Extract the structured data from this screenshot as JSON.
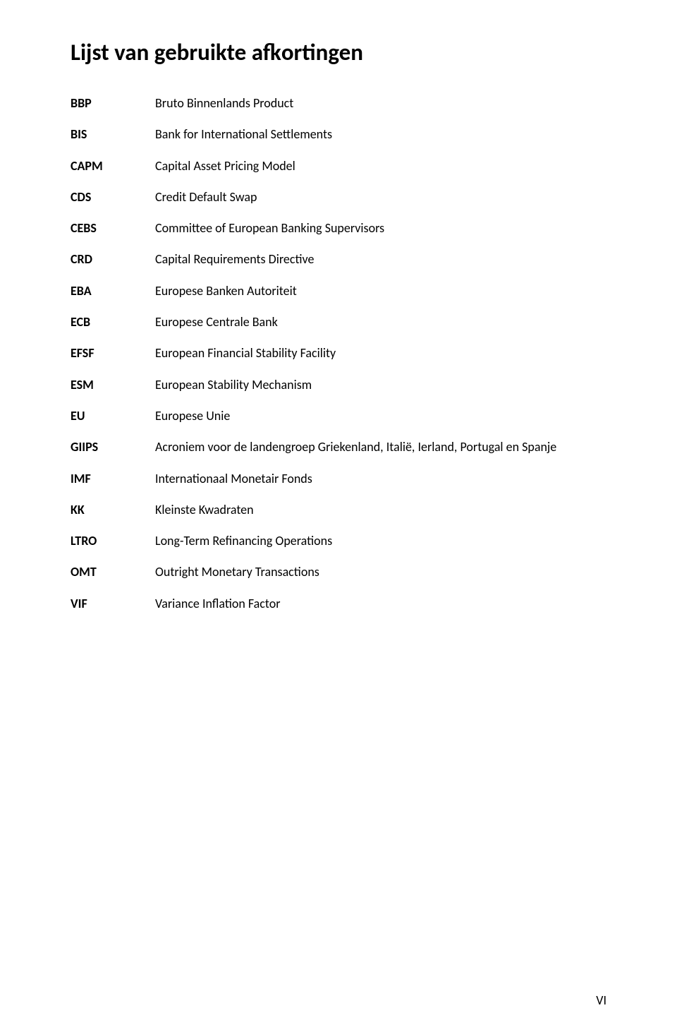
{
  "title": "Lijst van gebruikte afkortingen",
  "rows": [
    {
      "term": "BBP",
      "def": "Bruto Binnenlands Product"
    },
    {
      "term": "BIS",
      "def": "Bank for International Settlements"
    },
    {
      "term": "CAPM",
      "def": "Capital Asset Pricing Model"
    },
    {
      "term": "CDS",
      "def": "Credit Default Swap"
    },
    {
      "term": "CEBS",
      "def": "Committee of European Banking Supervisors"
    },
    {
      "term": "CRD",
      "def": "Capital Requirements Directive"
    },
    {
      "term": "EBA",
      "def": "Europese Banken Autoriteit"
    },
    {
      "term": "ECB",
      "def": "Europese Centrale Bank"
    },
    {
      "term": "EFSF",
      "def": "European Financial Stability Facility"
    },
    {
      "term": "ESM",
      "def": "European Stability Mechanism"
    },
    {
      "term": "EU",
      "def": "Europese Unie"
    },
    {
      "term": "GIIPS",
      "def": "Acroniem voor de landengroep Griekenland, Italië, Ierland, Portugal en Spanje"
    },
    {
      "term": "IMF",
      "def": "Internationaal Monetair Fonds"
    },
    {
      "term": "KK",
      "def": "Kleinste Kwadraten"
    },
    {
      "term": "LTRO",
      "def": "Long-Term Refinancing Operations"
    },
    {
      "term": "OMT",
      "def": "Outright Monetary Transactions"
    },
    {
      "term": "VIF",
      "def": "Variance Inflation Factor"
    }
  ],
  "page_number": "VI"
}
